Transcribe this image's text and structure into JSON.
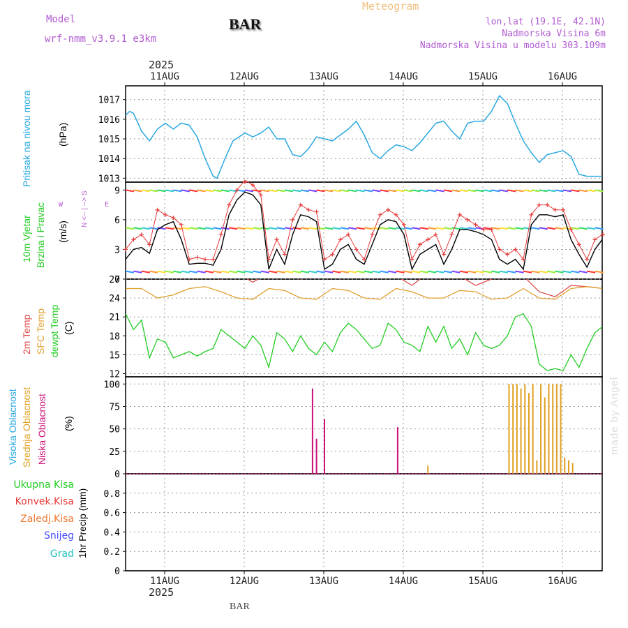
{
  "header": {
    "model_label": "Model",
    "model_name": "wrf-nmm_v3.9.1  e3km",
    "station": "BAR",
    "title": "Meteogram",
    "lonlat": "lon,lat (19.1E, 42.1N)",
    "elevation": "Nadmorska Visina 6m",
    "model_elevation": "Nadmorska Visina u modelu 303.109m",
    "year_top": "2025",
    "year_bottom": "2025",
    "footer_station": "BAR",
    "credit": "made by Angel"
  },
  "colors": {
    "pressure": "#29a8e0",
    "wind_speed": "#000000",
    "gust": "#e83a3a",
    "temp2m": "#e04a4a",
    "sfc": "#e0a030",
    "dewpt": "#22cc22",
    "cloud_high": "#29a8e0",
    "cloud_mid": "#e0a020",
    "cloud_low": "#cc1177",
    "grid": "#999999"
  },
  "chart_data": [
    {
      "type": "line",
      "title": "Pritisak na nivou mora",
      "ylabel": "(hPa)",
      "ylim": [
        1012.8,
        1017.7
      ],
      "yticks": [
        1013,
        1014,
        1015,
        1016,
        1017
      ],
      "x_days": [
        "11AUG",
        "12AUG",
        "13AUG",
        "14AUG",
        "15AUG",
        "16AUG"
      ],
      "series": [
        {
          "name": "Pritisak na nivou mora",
          "x": [
            0,
            0.05,
            0.1,
            0.2,
            0.3,
            0.4,
            0.5,
            0.6,
            0.7,
            0.8,
            0.9,
            1.0,
            1.1,
            1.15,
            1.25,
            1.35,
            1.5,
            1.6,
            1.7,
            1.8,
            1.9,
            2.0,
            2.1,
            2.2,
            2.3,
            2.4,
            2.5,
            2.6,
            2.7,
            2.8,
            2.9,
            3.0,
            3.1,
            3.2,
            3.3,
            3.4,
            3.5,
            3.6,
            3.7,
            3.8,
            3.9,
            4.0,
            4.1,
            4.2,
            4.3,
            4.4,
            4.5,
            4.6,
            4.7,
            4.8,
            4.9,
            5.0,
            5.1,
            5.2,
            5.3,
            5.4,
            5.5,
            5.6,
            5.7,
            5.8,
            5.9,
            6.0
          ],
          "values": [
            1016.2,
            1016.4,
            1016.3,
            1015.4,
            1014.9,
            1015.5,
            1015.8,
            1015.5,
            1015.8,
            1015.7,
            1015.1,
            1014.0,
            1013.1,
            1013.0,
            1014.0,
            1014.9,
            1015.3,
            1015.1,
            1015.3,
            1015.6,
            1015.0,
            1015.0,
            1014.2,
            1014.1,
            1014.5,
            1015.1,
            1015.0,
            1014.9,
            1015.2,
            1015.5,
            1015.9,
            1015.2,
            1014.3,
            1014.0,
            1014.4,
            1014.7,
            1014.6,
            1014.4,
            1014.8,
            1015.3,
            1015.8,
            1015.9,
            1015.4,
            1015.0,
            1015.8,
            1015.9,
            1015.9,
            1016.4,
            1017.2,
            1016.8,
            1015.8,
            1014.9,
            1014.3,
            1013.8,
            1014.2,
            1014.3,
            1014.4,
            1014.1,
            1013.2,
            1013.1,
            1013.1,
            1013.1
          ]
        }
      ]
    },
    {
      "type": "line",
      "title": "10m Vjetar Brzina i Pravac",
      "ylabel": "(m/s)",
      "ylim": [
        0,
        9.8
      ],
      "yticks": [
        0,
        3,
        6,
        9
      ],
      "compass": "N <-- | --> S",
      "compass_w": "W",
      "compass_e": "E",
      "series": [
        {
          "name": "Brzina",
          "x": [
            0,
            0.1,
            0.2,
            0.3,
            0.4,
            0.5,
            0.6,
            0.7,
            0.8,
            0.9,
            1.0,
            1.1,
            1.2,
            1.3,
            1.4,
            1.5,
            1.6,
            1.7,
            1.8,
            1.9,
            2.0,
            2.1,
            2.2,
            2.3,
            2.4,
            2.5,
            2.6,
            2.7,
            2.8,
            2.9,
            3.0,
            3.1,
            3.2,
            3.3,
            3.4,
            3.5,
            3.6,
            3.7,
            3.8,
            3.9,
            4.0,
            4.1,
            4.2,
            4.3,
            4.4,
            4.5,
            4.6,
            4.7,
            4.8,
            4.9,
            5.0,
            5.1,
            5.2,
            5.3,
            5.4,
            5.5,
            5.6,
            5.7,
            5.8,
            5.9,
            6.0
          ],
          "values": [
            2.0,
            3.0,
            3.2,
            2.6,
            5.0,
            5.5,
            5.8,
            4.0,
            1.5,
            1.6,
            1.6,
            1.4,
            3.0,
            6.5,
            8.0,
            8.8,
            8.5,
            7.5,
            1.0,
            3.0,
            1.5,
            4.5,
            6.5,
            6.3,
            5.8,
            1.0,
            1.5,
            3.0,
            3.5,
            2.0,
            1.5,
            3.5,
            5.5,
            6.0,
            5.8,
            4.5,
            1.0,
            2.5,
            3.0,
            3.5,
            1.5,
            3.0,
            5.0,
            5.0,
            4.8,
            4.5,
            4.0,
            2.0,
            1.5,
            2.0,
            1.0,
            5.5,
            6.5,
            6.5,
            6.3,
            6.5,
            4.0,
            2.5,
            1.2,
            3.0,
            4.0
          ]
        },
        {
          "name": "Udari",
          "x": [
            0,
            0.1,
            0.2,
            0.3,
            0.4,
            0.5,
            0.6,
            0.7,
            0.8,
            0.9,
            1.0,
            1.1,
            1.2,
            1.3,
            1.4,
            1.5,
            1.6,
            1.7,
            1.8,
            1.9,
            2.0,
            2.1,
            2.2,
            2.3,
            2.4,
            2.5,
            2.6,
            2.7,
            2.8,
            2.9,
            3.0,
            3.1,
            3.2,
            3.3,
            3.4,
            3.5,
            3.6,
            3.7,
            3.8,
            3.9,
            4.0,
            4.1,
            4.2,
            4.3,
            4.4,
            4.5,
            4.6,
            4.7,
            4.8,
            4.9,
            5.0,
            5.1,
            5.2,
            5.3,
            5.4,
            5.5,
            5.6,
            5.7,
            5.8,
            5.9,
            6.0
          ],
          "values": [
            3.0,
            4.0,
            4.5,
            3.5,
            7.0,
            6.5,
            6.2,
            5.5,
            2.0,
            2.2,
            2.0,
            2.0,
            4.5,
            7.5,
            9.0,
            10.0,
            9.5,
            8.5,
            2.0,
            4.0,
            2.5,
            6.0,
            7.5,
            7.0,
            6.8,
            2.0,
            2.5,
            4.0,
            4.5,
            3.0,
            2.0,
            4.5,
            6.5,
            7.0,
            6.5,
            5.5,
            2.0,
            3.5,
            4.0,
            4.5,
            2.5,
            4.5,
            6.5,
            6.0,
            5.5,
            5.0,
            5.0,
            3.0,
            2.5,
            3.0,
            2.0,
            6.5,
            7.5,
            7.5,
            7.0,
            7.0,
            5.0,
            3.5,
            2.0,
            4.0,
            4.5
          ]
        }
      ]
    },
    {
      "type": "line",
      "title": "2m Temp / SFC Temp / dewpt Temp",
      "ylabel": "(C)",
      "ylim": [
        11.5,
        27
      ],
      "yticks": [
        12,
        15,
        18,
        21,
        24,
        27
      ],
      "series": [
        {
          "name": "2m Temp",
          "x": [
            0,
            0.2,
            0.4,
            0.6,
            0.8,
            1.0,
            1.2,
            1.4,
            1.6,
            1.8,
            2.0,
            2.2,
            2.4,
            2.6,
            2.8,
            3.0,
            3.2,
            3.4,
            3.6,
            3.8,
            4.0,
            4.2,
            4.4,
            4.6,
            4.8,
            5.0,
            5.2,
            5.4,
            5.6,
            5.8,
            6.0
          ],
          "values": [
            28.0,
            27.0,
            27.5,
            27.2,
            28.0,
            28.5,
            27.0,
            28.0,
            26.5,
            28.0,
            28.5,
            27.0,
            28.0,
            27.5,
            28.0,
            28.5,
            28.0,
            27.5,
            26.0,
            28.0,
            28.5,
            27.5,
            26.0,
            27.0,
            28.0,
            27.5,
            25.0,
            24.2,
            26.0,
            25.8,
            25.5
          ]
        },
        {
          "name": "SFC Temp",
          "x": [
            0,
            0.2,
            0.4,
            0.6,
            0.8,
            1.0,
            1.2,
            1.4,
            1.6,
            1.8,
            2.0,
            2.2,
            2.4,
            2.6,
            2.8,
            3.0,
            3.2,
            3.4,
            3.6,
            3.8,
            4.0,
            4.2,
            4.4,
            4.6,
            4.8,
            5.0,
            5.2,
            5.4,
            5.6,
            5.8,
            6.0
          ],
          "values": [
            25.5,
            25.5,
            24.0,
            24.5,
            25.5,
            25.8,
            25.0,
            24.0,
            23.8,
            25.5,
            25.2,
            24.0,
            23.8,
            25.5,
            25.2,
            24.0,
            23.8,
            25.5,
            25.0,
            24.0,
            24.0,
            25.2,
            25.0,
            23.8,
            24.0,
            25.5,
            24.0,
            23.8,
            25.5,
            25.8,
            25.5
          ]
        },
        {
          "name": "dewpt Temp",
          "x": [
            0,
            0.1,
            0.2,
            0.3,
            0.4,
            0.5,
            0.6,
            0.7,
            0.8,
            0.9,
            1.0,
            1.1,
            1.2,
            1.3,
            1.4,
            1.5,
            1.6,
            1.7,
            1.8,
            1.9,
            2.0,
            2.1,
            2.2,
            2.3,
            2.4,
            2.5,
            2.6,
            2.7,
            2.8,
            2.9,
            3.0,
            3.1,
            3.2,
            3.3,
            3.4,
            3.5,
            3.6,
            3.7,
            3.8,
            3.9,
            4.0,
            4.1,
            4.2,
            4.3,
            4.4,
            4.5,
            4.6,
            4.7,
            4.8,
            4.9,
            5.0,
            5.1,
            5.2,
            5.3,
            5.4,
            5.5,
            5.6,
            5.7,
            5.8,
            5.9,
            6.0
          ],
          "values": [
            21.5,
            19.0,
            20.5,
            14.5,
            17.5,
            17.0,
            14.5,
            15.0,
            15.5,
            14.8,
            15.5,
            16.0,
            19.0,
            18.0,
            17.0,
            16.0,
            18.0,
            16.5,
            13.0,
            18.5,
            17.5,
            15.5,
            18.0,
            16.0,
            15.0,
            17.0,
            15.5,
            18.5,
            20.0,
            19.0,
            17.5,
            16.0,
            16.5,
            20.0,
            19.0,
            17.0,
            16.5,
            15.5,
            19.5,
            17.0,
            19.5,
            16.0,
            17.5,
            15.0,
            18.5,
            16.5,
            16.0,
            16.5,
            18.0,
            21.0,
            21.5,
            19.5,
            13.5,
            12.5,
            12.8,
            12.5,
            15.0,
            13.0,
            16.0,
            18.5,
            19.5
          ]
        }
      ]
    },
    {
      "type": "bar",
      "title": "Visoka / Srednja / Niska Oblacnost",
      "ylabel": "(%)",
      "ylim": [
        0,
        108
      ],
      "yticks": [
        0,
        25,
        50,
        75,
        100
      ],
      "series": [
        {
          "name": "Visoka Oblacnost",
          "x": [],
          "values": []
        },
        {
          "name": "Srednja Oblacnost",
          "x": [
            3.8,
            4.82,
            4.87,
            4.92,
            4.97,
            5.02,
            5.07,
            5.12,
            5.17,
            5.22,
            5.27,
            5.32,
            5.37,
            5.42,
            5.47,
            5.52,
            5.57,
            5.62
          ],
          "values": [
            9,
            100,
            100,
            100,
            95,
            100,
            90,
            100,
            15,
            100,
            85,
            100,
            100,
            100,
            100,
            18,
            15,
            12
          ]
        },
        {
          "name": "Niska Oblacnost",
          "x": [
            2.35,
            2.4,
            2.5,
            3.42
          ],
          "values": [
            95,
            39,
            61,
            52
          ]
        }
      ]
    },
    {
      "type": "line",
      "title": "1hr Precip",
      "ylabel": "1hr Precip (mm)",
      "ylim": [
        0,
        1.0
      ],
      "yticks": [
        0,
        0.2,
        0.4,
        0.6,
        0.8
      ],
      "legend": [
        "Ukupna Kisa",
        "Konvek.Kisa",
        "Zaledj.Kisa",
        "Snijeg",
        "Grad"
      ],
      "series": []
    }
  ],
  "ylabels": {
    "p1": "Pritisak na nivou mora",
    "p2a": "10m Vjetar",
    "p2b": "Brzina i Pravac",
    "p3a": "2m Temp",
    "p3b": "SFC Temp",
    "p3c": "dewpt Temp",
    "p4a": "Visoka Oblacnost",
    "p4b": "Srednja Oblacnost",
    "p4c": "Niska Oblacnost"
  }
}
